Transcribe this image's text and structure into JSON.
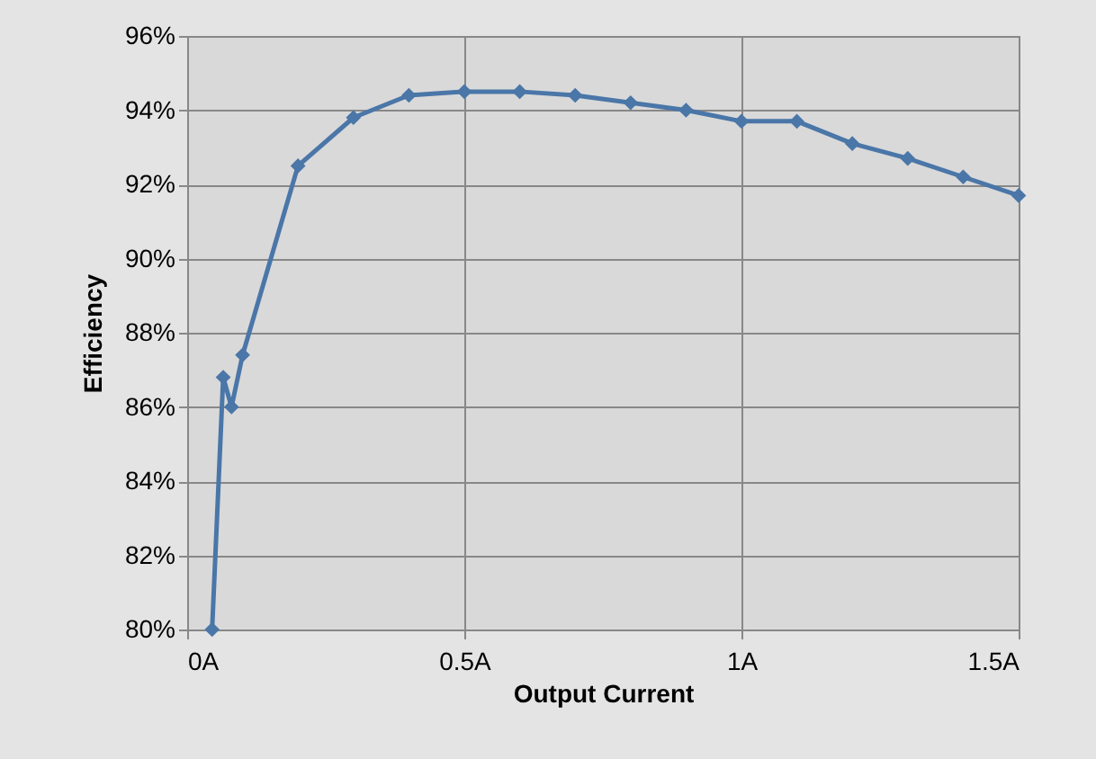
{
  "chart_data": {
    "type": "line",
    "xlabel": "Output Current",
    "ylabel": "Efficiency",
    "x": [
      0.045,
      0.065,
      0.08,
      0.1,
      0.2,
      0.3,
      0.4,
      0.5,
      0.6,
      0.7,
      0.8,
      0.9,
      1.0,
      1.1,
      1.2,
      1.3,
      1.4,
      1.5
    ],
    "series": [
      {
        "color": "#4a76a8",
        "values": [
          80,
          86.8,
          86.0,
          87.4,
          92.5,
          93.8,
          94.4,
          94.5,
          94.5,
          94.4,
          94.2,
          94.0,
          93.7,
          93.7,
          93.1,
          92.7,
          92.2,
          91.7
        ]
      }
    ],
    "xlim": [
      0,
      1.5
    ],
    "xticks": [
      {
        "value": 0,
        "label": "0A"
      },
      {
        "value": 0.5,
        "label": "0.5A"
      },
      {
        "value": 1,
        "label": "1A"
      },
      {
        "value": 1.5,
        "label": "1.5A"
      }
    ],
    "ylim": [
      80,
      96
    ],
    "yticks": [
      {
        "value": 80,
        "label": "80%"
      },
      {
        "value": 82,
        "label": "82%"
      },
      {
        "value": 84,
        "label": "84%"
      },
      {
        "value": 86,
        "label": "86%"
      },
      {
        "value": 88,
        "label": "88%"
      },
      {
        "value": 90,
        "label": "90%"
      },
      {
        "value": 92,
        "label": "92%"
      },
      {
        "value": 94,
        "label": "94%"
      },
      {
        "value": 96,
        "label": "96%"
      }
    ],
    "grid": true,
    "marker": "diamond",
    "line_style": "solid"
  }
}
